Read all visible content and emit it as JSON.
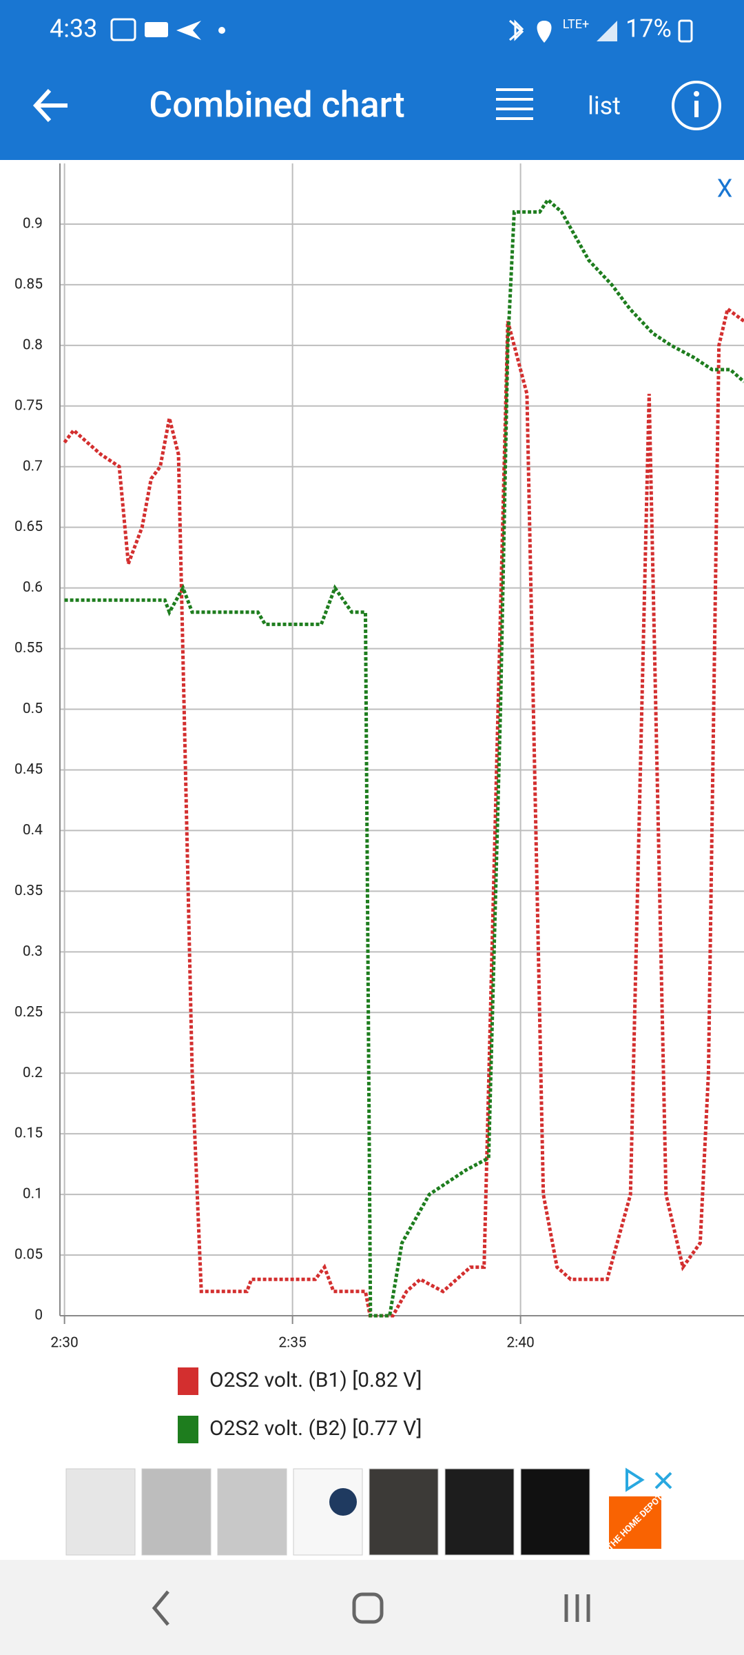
{
  "status_bar": {
    "time": "4:33",
    "network": "LTE+",
    "battery": "17%"
  },
  "app_bar": {
    "title": "Combined chart",
    "action": "list"
  },
  "close": "X",
  "chart_data": {
    "type": "line",
    "xlim": [
      149.9,
      164.9
    ],
    "xticks": [
      {
        "value": 150,
        "label": "2:30"
      },
      {
        "value": 155,
        "label": "2:35"
      },
      {
        "value": 160,
        "label": "2:40"
      }
    ],
    "ylim": [
      0,
      0.95
    ],
    "yticks": [
      0,
      0.05,
      0.1,
      0.15,
      0.2,
      0.25,
      0.3,
      0.35,
      0.4,
      0.45,
      0.5,
      0.55,
      0.6,
      0.65,
      0.7,
      0.75,
      0.8,
      0.85,
      0.9
    ],
    "grid": true,
    "series": [
      {
        "name": "O2S2 volt. (B1) [0.82 V]",
        "color": "#d32f2f",
        "x": [
          150,
          150.2,
          150.5,
          150.8,
          151.2,
          151.4,
          151.7,
          151.9,
          152.1,
          152.3,
          152.5,
          152.8,
          153.0,
          154.0,
          154.1,
          155.5,
          155.7,
          155.9,
          156.6,
          156.7,
          157.2,
          157.5,
          157.8,
          158.3,
          158.6,
          158.9,
          159.2,
          159.72,
          160.14,
          160.5,
          160.8,
          161.1,
          161.9,
          162.41,
          162.82,
          163.19,
          163.56,
          163.94,
          164.12,
          164.35,
          164.54,
          164.9
        ],
        "values": [
          0.72,
          0.73,
          0.72,
          0.71,
          0.7,
          0.62,
          0.65,
          0.69,
          0.7,
          0.74,
          0.71,
          0.2,
          0.02,
          0.02,
          0.03,
          0.03,
          0.04,
          0.02,
          0.02,
          0,
          0,
          0.02,
          0.03,
          0.02,
          0.03,
          0.04,
          0.04,
          0.82,
          0.76,
          0.1,
          0.04,
          0.03,
          0.03,
          0.1,
          0.76,
          0.1,
          0.04,
          0.06,
          0.2,
          0.8,
          0.83,
          0.82
        ]
      },
      {
        "name": "O2S2 volt. (B2) [0.77 V]",
        "color": "#1e7d1e",
        "x": [
          150,
          152.2,
          152.3,
          152.6,
          152.8,
          154.24,
          154.4,
          155.63,
          155.93,
          156.3,
          156.6,
          156.71,
          157.13,
          157.4,
          158.0,
          158.4,
          158.8,
          159.3,
          159.56,
          159.72,
          159.86,
          160.42,
          160.6,
          160.9,
          161.5,
          162.0,
          162.4,
          162.9,
          163.3,
          163.8,
          164.2,
          164.6,
          164.9
        ],
        "values": [
          0.59,
          0.59,
          0.58,
          0.6,
          0.58,
          0.58,
          0.57,
          0.57,
          0.6,
          0.58,
          0.58,
          0,
          0,
          0.06,
          0.1,
          0.11,
          0.12,
          0.13,
          0.5,
          0.8,
          0.91,
          0.91,
          0.92,
          0.91,
          0.87,
          0.85,
          0.83,
          0.81,
          0.8,
          0.79,
          0.78,
          0.78,
          0.77
        ]
      }
    ]
  },
  "ad": {
    "brand": "THE HOME DEPOT"
  }
}
